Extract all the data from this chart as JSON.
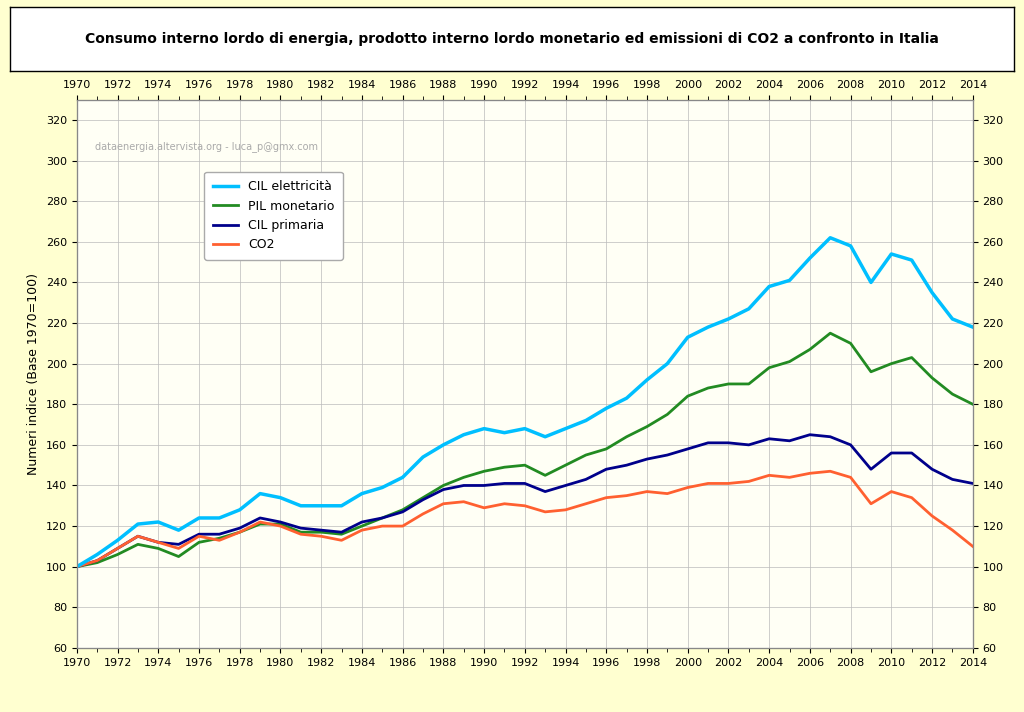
{
  "title": "Consumo interno lordo di energia, prodotto interno lordo monetario ed emissioni di CO2 a confronto in Italia",
  "ylabel": "Numeri indice (Base 1970=100)",
  "watermark": "dataenergia.altervista.org - luca_p@gmx.com",
  "years": [
    1970,
    1971,
    1972,
    1973,
    1974,
    1975,
    1976,
    1977,
    1978,
    1979,
    1980,
    1981,
    1982,
    1983,
    1984,
    1985,
    1986,
    1987,
    1988,
    1989,
    1990,
    1991,
    1992,
    1993,
    1994,
    1995,
    1996,
    1997,
    1998,
    1999,
    2000,
    2001,
    2002,
    2003,
    2004,
    2005,
    2006,
    2007,
    2008,
    2009,
    2010,
    2011,
    2012,
    2013,
    2014
  ],
  "CIL_elettricita": [
    100,
    106,
    113,
    121,
    122,
    118,
    124,
    124,
    128,
    136,
    134,
    130,
    130,
    130,
    136,
    139,
    144,
    154,
    160,
    165,
    168,
    166,
    168,
    164,
    168,
    172,
    178,
    183,
    192,
    200,
    213,
    218,
    222,
    227,
    238,
    241,
    252,
    262,
    258,
    240,
    254,
    251,
    235,
    222,
    218
  ],
  "PIL_monetario": [
    100,
    102,
    106,
    111,
    109,
    105,
    112,
    114,
    117,
    121,
    121,
    117,
    117,
    116,
    120,
    124,
    128,
    134,
    140,
    144,
    147,
    149,
    150,
    145,
    150,
    155,
    158,
    164,
    169,
    175,
    184,
    188,
    190,
    190,
    198,
    201,
    207,
    215,
    210,
    196,
    200,
    203,
    193,
    185,
    180
  ],
  "CIL_primaria": [
    100,
    103,
    109,
    115,
    112,
    111,
    116,
    116,
    119,
    124,
    122,
    119,
    118,
    117,
    122,
    124,
    127,
    133,
    138,
    140,
    140,
    141,
    141,
    137,
    140,
    143,
    148,
    150,
    153,
    155,
    158,
    161,
    161,
    160,
    163,
    162,
    165,
    164,
    160,
    148,
    156,
    156,
    148,
    143,
    141
  ],
  "CO2": [
    100,
    103,
    109,
    115,
    112,
    109,
    115,
    113,
    117,
    122,
    120,
    116,
    115,
    113,
    118,
    120,
    120,
    126,
    131,
    132,
    129,
    131,
    130,
    127,
    128,
    131,
    134,
    135,
    137,
    136,
    139,
    141,
    141,
    142,
    145,
    144,
    146,
    147,
    144,
    131,
    137,
    134,
    125,
    118,
    110
  ],
  "ylim": [
    60,
    330
  ],
  "yticks": [
    60,
    80,
    100,
    120,
    140,
    160,
    180,
    200,
    220,
    240,
    260,
    280,
    300,
    320
  ],
  "bg_color": "#FFFFD0",
  "plot_bg_color": "#FFFFF5",
  "grid_color": "#BBBBBB",
  "color_cil_elett": "#00BFFF",
  "color_pil": "#228B22",
  "color_cil_prim": "#00008B",
  "color_co2": "#FF6030",
  "linewidth": 2.0,
  "title_fontsize": 10,
  "axis_fontsize": 8,
  "legend_fontsize": 9
}
